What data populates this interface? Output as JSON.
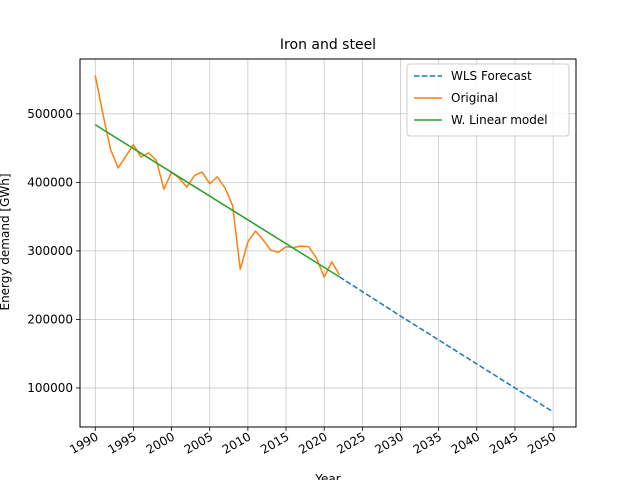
{
  "chart_data": {
    "type": "line",
    "title": "Iron and steel",
    "xlabel": "Year",
    "ylabel": "Energy demand [GWh]",
    "xlim": [
      1988,
      2053
    ],
    "ylim": [
      43000,
      580000
    ],
    "grid": true,
    "legend_position": "top-right",
    "x_ticks": [
      1990,
      1995,
      2000,
      2005,
      2010,
      2015,
      2020,
      2025,
      2030,
      2035,
      2040,
      2045,
      2050
    ],
    "x_tick_labels": [
      "1990",
      "1995",
      "2000",
      "2005",
      "2010",
      "2015",
      "2020",
      "2025",
      "2030",
      "2035",
      "2040",
      "2045",
      "2050"
    ],
    "y_ticks": [
      100000,
      200000,
      300000,
      400000,
      500000
    ],
    "y_tick_labels": [
      "100000",
      "200000",
      "300000",
      "400000",
      "500000"
    ],
    "series": [
      {
        "name": "WLS Forecast",
        "color": "#1f77b4",
        "style": "dashed",
        "x": [
          2022,
          2030,
          2040,
          2050
        ],
        "y": [
          262000,
          205000,
          135000,
          65000
        ]
      },
      {
        "name": "Original",
        "color": "#ff7f0e",
        "style": "solid",
        "x": [
          1990,
          1991,
          1992,
          1993,
          1994,
          1995,
          1996,
          1997,
          1998,
          1999,
          2000,
          2001,
          2002,
          2003,
          2004,
          2005,
          2006,
          2007,
          2008,
          2009,
          2010,
          2011,
          2012,
          2013,
          2014,
          2015,
          2016,
          2017,
          2018,
          2019,
          2020,
          2021,
          2022
        ],
        "y": [
          556000,
          500000,
          448000,
          421000,
          438000,
          455000,
          437000,
          443000,
          432000,
          390000,
          415000,
          406000,
          393000,
          410000,
          415000,
          398000,
          408000,
          392000,
          366000,
          273000,
          313000,
          329000,
          316000,
          301000,
          298000,
          306000,
          305000,
          307000,
          306000,
          289000,
          262000,
          284000,
          265000
        ]
      },
      {
        "name": "W. Linear model",
        "color": "#2ca02c",
        "style": "solid",
        "x": [
          1990,
          2022
        ],
        "y": [
          484000,
          262000
        ]
      }
    ]
  }
}
